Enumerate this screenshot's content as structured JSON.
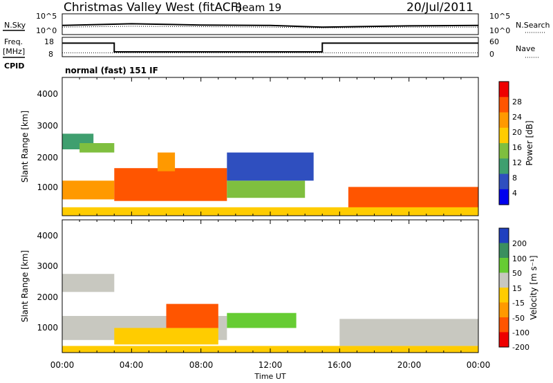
{
  "header": {
    "station": "Christmas Valley West (fitACF)",
    "beam": "Beam 19",
    "date": "20/Jul/2011"
  },
  "noise_panel": {
    "left_label": "N.Sky",
    "right_label": "N.Search",
    "left_ticks": [
      "10^5",
      "10^0"
    ],
    "right_ticks": [
      "10^5",
      "10^0"
    ]
  },
  "freq_panel": {
    "label_line1": "Freq.",
    "label_line2": "[MHz]",
    "right_label": "Nave",
    "left_ticks": [
      "18",
      "8"
    ],
    "right_ticks": [
      "60",
      "0"
    ]
  },
  "cpid": {
    "label": "CPID",
    "text": "normal (fast) 151 IF"
  },
  "power_panel": {
    "ylabel": "Slant Range [km]",
    "yticks": [
      "4000",
      "3000",
      "2000",
      "1000"
    ],
    "colorbar_label": "Power [dB]",
    "colorbar_ticks": [
      "28",
      "24",
      "20",
      "16",
      "12",
      "8",
      "4"
    ],
    "colors": [
      "#ee0000",
      "#ff5500",
      "#ff9900",
      "#ffcc00",
      "#7fbf3f",
      "#3f9f6f",
      "#2f4fbf",
      "#0000ee"
    ]
  },
  "velocity_panel": {
    "ylabel": "Slant Range [km]",
    "yticks": [
      "4000",
      "3000",
      "2000",
      "1000"
    ],
    "colorbar_label": "Velocity [m s⁻¹]",
    "colorbar_ticks": [
      "200",
      "100",
      "50",
      "15",
      "-15",
      "-50",
      "-100",
      "-200"
    ],
    "colors": [
      "#2040bf",
      "#3a8f5f",
      "#66cc33",
      "#c8c8c0",
      "#ffcc00",
      "#ff9900",
      "#ff5500",
      "#ee0000"
    ]
  },
  "xaxis": {
    "label": "Time UT",
    "ticks": [
      "00:00",
      "04:00",
      "08:00",
      "12:00",
      "16:00",
      "20:00",
      "00:00"
    ]
  },
  "chart_data": [
    {
      "type": "line",
      "title": "Christmas Valley West (fitACF)",
      "ylabel": "N.Sky / N.Search",
      "x_range": [
        "00:00",
        "24:00"
      ],
      "series": [
        {
          "name": "N.Sky",
          "points": [
            [
              0,
              2.2
            ],
            [
              4,
              2.6
            ],
            [
              8,
              2.3
            ],
            [
              12,
              2.2
            ],
            [
              15,
              1.8
            ],
            [
              20,
              2.1
            ],
            [
              24,
              2.2
            ]
          ]
        },
        {
          "name": "N.Search",
          "points": [
            [
              0,
              1.8
            ],
            [
              4,
              2.0
            ],
            [
              8,
              1.9
            ],
            [
              12,
              1.8
            ],
            [
              15,
              1.6
            ],
            [
              20,
              1.8
            ],
            [
              24,
              1.8
            ]
          ]
        }
      ]
    },
    {
      "type": "line",
      "ylabel": "Freq. [MHz]",
      "y_range": [
        8,
        18
      ],
      "series": [
        {
          "name": "Freq. [MHz]",
          "points": [
            [
              0,
              15
            ],
            [
              3,
              15
            ],
            [
              3,
              10.5
            ],
            [
              15,
              10.5
            ],
            [
              15,
              15
            ],
            [
              24,
              15
            ]
          ]
        },
        {
          "name": "Nave",
          "points": [
            [
              0,
              10
            ],
            [
              24,
              10
            ]
          ]
        }
      ]
    },
    {
      "type": "heatmap",
      "title": "Power [dB]",
      "xlabel": "Time UT",
      "ylabel": "Slant Range [km]",
      "x_range": [
        0,
        24
      ],
      "y_range": [
        180,
        4600
      ],
      "z_range": [
        0,
        30
      ],
      "colorbar_ticks": [
        4,
        8,
        12,
        16,
        20,
        24,
        28
      ],
      "regions": [
        {
          "t": [
            0,
            1.8
          ],
          "r": [
            2300,
            2800
          ],
          "value": 8
        },
        {
          "t": [
            1,
            3
          ],
          "r": [
            2200,
            2500
          ],
          "value": 12
        },
        {
          "t": [
            0,
            3
          ],
          "r": [
            700,
            1300
          ],
          "value": 20
        },
        {
          "t": [
            3,
            9.5
          ],
          "r": [
            650,
            1700
          ],
          "value": 26
        },
        {
          "t": [
            5.5,
            6.5
          ],
          "r": [
            1600,
            2200
          ],
          "value": 20
        },
        {
          "t": [
            9.5,
            14
          ],
          "r": [
            750,
            1300
          ],
          "value": 14
        },
        {
          "t": [
            9.5,
            14.5
          ],
          "r": [
            1300,
            2200
          ],
          "value": 6
        },
        {
          "t": [
            16.5,
            24
          ],
          "r": [
            400,
            1100
          ],
          "value": 24
        },
        {
          "t": [
            0,
            24
          ],
          "r": [
            180,
            450
          ],
          "value": 18
        }
      ]
    },
    {
      "type": "heatmap",
      "title": "Velocity [m s⁻¹]",
      "xlabel": "Time UT",
      "ylabel": "Slant Range [km]",
      "x_range": [
        0,
        24
      ],
      "y_range": [
        180,
        4600
      ],
      "z_range": [
        -200,
        200
      ],
      "colorbar_ticks": [
        200,
        100,
        50,
        15,
        -15,
        -50,
        -100,
        -200
      ],
      "regions": [
        {
          "t": [
            0,
            3
          ],
          "r": [
            2200,
            2800
          ],
          "value": 0
        },
        {
          "t": [
            0,
            9.5
          ],
          "r": [
            600,
            1400
          ],
          "value": 0
        },
        {
          "t": [
            3,
            9
          ],
          "r": [
            450,
            1000
          ],
          "value": -30
        },
        {
          "t": [
            6,
            9
          ],
          "r": [
            1000,
            1800
          ],
          "value": -150
        },
        {
          "t": [
            9.5,
            13.5
          ],
          "r": [
            1000,
            1500
          ],
          "value": 40
        },
        {
          "t": [
            16,
            24
          ],
          "r": [
            400,
            1300
          ],
          "value": 0
        },
        {
          "t": [
            0,
            24
          ],
          "r": [
            180,
            400
          ],
          "value": -40
        }
      ]
    }
  ]
}
